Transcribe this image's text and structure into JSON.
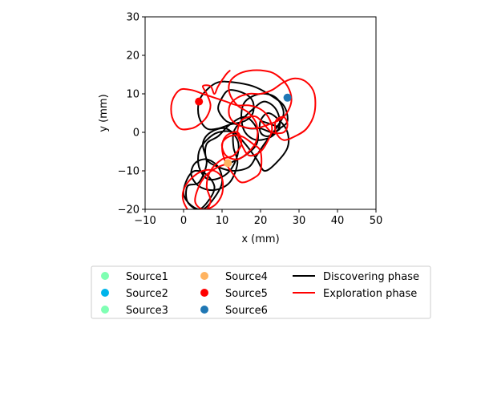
{
  "chart_data": {
    "type": "scatter",
    "xlabel": "x (mm)",
    "ylabel": "y (mm)",
    "xlim": [
      -10,
      50
    ],
    "ylim": [
      -20,
      30
    ],
    "x_ticks": [
      -10,
      0,
      10,
      20,
      30,
      40,
      50
    ],
    "y_ticks": [
      -20,
      -10,
      0,
      10,
      20,
      30
    ],
    "x_tick_labels": [
      "−10",
      "0",
      "10",
      "20",
      "30",
      "40",
      "50"
    ],
    "y_tick_labels": [
      "−20",
      "−10",
      "0",
      "10",
      "20",
      "30"
    ],
    "grid": false,
    "legend_position": "below plot",
    "sources": [
      {
        "name": "Source1",
        "color": "#7fffb2",
        "x": null,
        "y": null
      },
      {
        "name": "Source2",
        "color": "#00b5eb",
        "x": null,
        "y": null
      },
      {
        "name": "Source3",
        "color": "#80ffb4",
        "x": null,
        "y": null
      },
      {
        "name": "Source4",
        "color": "#ffb360",
        "x": 11.5,
        "y": -8.0
      },
      {
        "name": "Source5",
        "color": "#ff0000",
        "x": 4.0,
        "y": 8.0
      },
      {
        "name": "Source6",
        "color": "#1f77b4",
        "x": 27.0,
        "y": 9.0
      }
    ],
    "paths": [
      {
        "name": "Discovering phase",
        "color": "#000000",
        "points": [
          [
            12,
            -8
          ],
          [
            16,
            -6
          ],
          [
            19,
            -3
          ],
          [
            19,
            1
          ],
          [
            16,
            4
          ],
          [
            12,
            2
          ],
          [
            9,
            -1
          ],
          [
            6,
            -3
          ],
          [
            6,
            -7
          ],
          [
            9,
            -9
          ],
          [
            13,
            -10
          ],
          [
            17,
            -9
          ],
          [
            19,
            -6
          ],
          [
            21,
            -3
          ],
          [
            24,
            1
          ],
          [
            26,
            5
          ],
          [
            24,
            9
          ],
          [
            20,
            10
          ],
          [
            16,
            8
          ],
          [
            15,
            4
          ],
          [
            16,
            0
          ],
          [
            19,
            -2
          ],
          [
            23,
            -1
          ],
          [
            25,
            2
          ],
          [
            24,
            6
          ],
          [
            21,
            8
          ],
          [
            18,
            6
          ],
          [
            15,
            3
          ],
          [
            13,
            0
          ],
          [
            13,
            -4
          ],
          [
            14,
            -8
          ],
          [
            12,
            -13
          ],
          [
            8,
            -15
          ],
          [
            4,
            -14
          ],
          [
            2,
            -11
          ],
          [
            3,
            -8
          ],
          [
            6,
            -7
          ],
          [
            9,
            -9
          ],
          [
            10,
            -13
          ],
          [
            8,
            -17
          ],
          [
            5,
            -20
          ],
          [
            2,
            -19
          ],
          [
            0,
            -16
          ],
          [
            1,
            -12
          ],
          [
            3,
            -10
          ],
          [
            6,
            -11
          ],
          [
            8,
            -14
          ],
          [
            7,
            -17
          ],
          [
            4,
            -20
          ],
          [
            1,
            -18
          ],
          [
            1,
            -14
          ],
          [
            4,
            -13
          ],
          [
            6,
            -8
          ],
          [
            5,
            -3
          ],
          [
            7,
            0
          ],
          [
            11,
            1
          ],
          [
            14,
            -2
          ],
          [
            14,
            -6
          ],
          [
            12,
            -10
          ],
          [
            9,
            -12
          ],
          [
            6,
            -12
          ],
          [
            4,
            -9
          ],
          [
            4,
            -5
          ],
          [
            6,
            -2
          ],
          [
            9,
            0
          ],
          [
            13,
            0
          ],
          [
            16,
            -3
          ],
          [
            19,
            -7
          ],
          [
            21,
            -10
          ],
          [
            24,
            -8
          ],
          [
            27,
            -4
          ],
          [
            27,
            0
          ],
          [
            25,
            3
          ],
          [
            22,
            5
          ],
          [
            20,
            3
          ],
          [
            20,
            0
          ],
          [
            22,
            -1
          ],
          [
            25,
            1
          ],
          [
            27,
            3
          ],
          [
            26,
            7
          ],
          [
            22,
            10
          ],
          [
            18,
            12
          ],
          [
            13,
            13
          ],
          [
            9,
            13
          ],
          [
            6,
            11
          ],
          [
            4,
            8
          ],
          [
            4,
            4
          ],
          [
            6,
            1
          ],
          [
            9,
            1
          ],
          [
            12,
            2
          ],
          [
            16,
            3
          ],
          [
            18,
            5
          ],
          [
            18,
            8
          ],
          [
            16,
            10
          ],
          [
            12,
            11
          ],
          [
            10,
            9
          ],
          [
            9,
            6
          ],
          [
            11,
            3
          ],
          [
            14,
            2
          ],
          [
            17,
            1
          ],
          [
            20,
            1
          ],
          [
            23,
            0
          ],
          [
            25,
            1
          ],
          [
            23,
            2
          ],
          [
            20,
            3
          ]
        ]
      },
      {
        "name": "Exploration phase",
        "color": "#ff0000",
        "points": [
          [
            12,
            -8
          ],
          [
            9,
            -9
          ],
          [
            6,
            -11
          ],
          [
            4,
            -14
          ],
          [
            3,
            -18
          ],
          [
            5,
            -20
          ],
          [
            8,
            -19
          ],
          [
            10,
            -16
          ],
          [
            10,
            -12
          ],
          [
            8,
            -10
          ],
          [
            5,
            -10
          ],
          [
            2,
            -12
          ],
          [
            0,
            -15
          ],
          [
            0,
            -18
          ],
          [
            2,
            -21
          ],
          [
            5,
            -21
          ],
          [
            7,
            -18
          ],
          [
            6,
            -14
          ],
          [
            7,
            -10
          ],
          [
            10,
            -7
          ],
          [
            13,
            -6
          ],
          [
            15,
            -3
          ],
          [
            14,
            0
          ],
          [
            11,
            -1
          ],
          [
            10,
            -4
          ],
          [
            11,
            -8
          ],
          [
            13,
            -11
          ],
          [
            15,
            -13
          ],
          [
            18,
            -12
          ],
          [
            20,
            -10
          ],
          [
            20,
            -5
          ],
          [
            18,
            -3
          ],
          [
            15,
            -1
          ],
          [
            12,
            -1
          ],
          [
            10,
            -3
          ],
          [
            11,
            -6
          ],
          [
            14,
            -7
          ],
          [
            17,
            -5
          ],
          [
            19,
            -2
          ],
          [
            19,
            2
          ],
          [
            17,
            5
          ],
          [
            14,
            7
          ],
          [
            12,
            10
          ],
          [
            12,
            13
          ],
          [
            14,
            15
          ],
          [
            17,
            16
          ],
          [
            21,
            16
          ],
          [
            24,
            15
          ],
          [
            27,
            12
          ],
          [
            28,
            8
          ],
          [
            26,
            4
          ],
          [
            22,
            2
          ],
          [
            18,
            1
          ],
          [
            14,
            2
          ],
          [
            12,
            4
          ],
          [
            12,
            7
          ],
          [
            14,
            9
          ],
          [
            17,
            10
          ],
          [
            20,
            10
          ],
          [
            23,
            11
          ],
          [
            26,
            13
          ],
          [
            29,
            14
          ],
          [
            32,
            13
          ],
          [
            34,
            10
          ],
          [
            34,
            5
          ],
          [
            32,
            1
          ],
          [
            29,
            -1
          ],
          [
            26,
            -2
          ],
          [
            24,
            0
          ],
          [
            24,
            3
          ],
          [
            26,
            4
          ],
          [
            27,
            2
          ],
          [
            26,
            0
          ],
          [
            23,
            0
          ],
          [
            21,
            2
          ],
          [
            19,
            4
          ],
          [
            17,
            4
          ],
          [
            15,
            3
          ],
          [
            14,
            0
          ],
          [
            15,
            -3
          ],
          [
            17,
            -6
          ],
          [
            20,
            -5
          ],
          [
            22,
            -2
          ],
          [
            23,
            1
          ],
          [
            22,
            4
          ],
          [
            20,
            6
          ],
          [
            17,
            7
          ],
          [
            14,
            7
          ],
          [
            11,
            8
          ],
          [
            8,
            9
          ],
          [
            5,
            10
          ],
          [
            2,
            11
          ],
          [
            -1,
            11
          ],
          [
            -3,
            8
          ],
          [
            -3,
            4
          ],
          [
            -1,
            1
          ],
          [
            2,
            1
          ],
          [
            4,
            2
          ],
          [
            6,
            4
          ],
          [
            7,
            7
          ],
          [
            6,
            10
          ],
          [
            5,
            12
          ],
          [
            7,
            12
          ],
          [
            8,
            10
          ],
          [
            9,
            12
          ],
          [
            11,
            15
          ],
          [
            12,
            16
          ]
        ]
      }
    ]
  }
}
